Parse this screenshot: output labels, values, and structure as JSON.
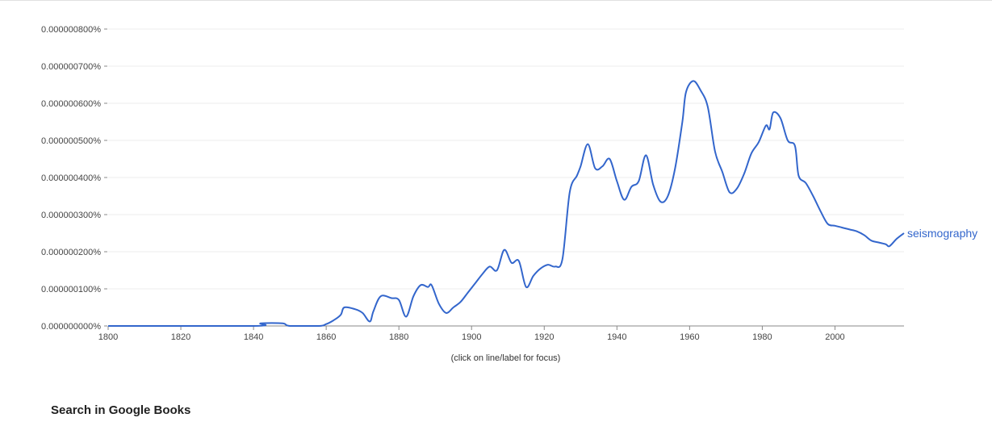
{
  "chart_data": {
    "type": "line",
    "xlim": [
      1800,
      2019
    ],
    "ylim": [
      0,
      8e-09
    ],
    "y_unit": "percent",
    "x_ticks": [
      "1800",
      "1820",
      "1840",
      "1860",
      "1880",
      "1900",
      "1920",
      "1940",
      "1960",
      "1980",
      "2000"
    ],
    "y_ticks": [
      "0.000000000%",
      "0.000000100%",
      "0.000000200%",
      "0.000000300%",
      "0.000000400%",
      "0.000000500%",
      "0.000000600%",
      "0.000000700%",
      "0.000000800%"
    ],
    "grid": true,
    "series": [
      {
        "name": "seismography",
        "color": "#3366cc",
        "x": [
          1800,
          1840,
          1842,
          1848,
          1850,
          1858,
          1860,
          1862,
          1864,
          1865,
          1868,
          1870,
          1872,
          1873,
          1875,
          1878,
          1880,
          1882,
          1884,
          1886,
          1888,
          1889,
          1891,
          1893,
          1895,
          1897,
          1899,
          1901,
          1903,
          1905,
          1907,
          1909,
          1911,
          1913,
          1915,
          1917,
          1919,
          1921,
          1923,
          1925,
          1927,
          1929,
          1930,
          1932,
          1934,
          1936,
          1938,
          1940,
          1942,
          1944,
          1946,
          1948,
          1950,
          1952,
          1954,
          1956,
          1958,
          1959,
          1961,
          1963,
          1965,
          1967,
          1969,
          1971,
          1973,
          1975,
          1977,
          1979,
          1981,
          1982,
          1983,
          1985,
          1987,
          1989,
          1990,
          1992,
          1994,
          1996,
          1998,
          2000,
          2002,
          2004,
          2006,
          2008,
          2010,
          2012,
          2014,
          2015,
          2017,
          2019
        ],
        "values": [
          0,
          0,
          7e-11,
          7e-11,
          0,
          0,
          5e-11,
          1.5e-10,
          3e-10,
          5e-10,
          4.5e-10,
          3.5e-10,
          1.2e-10,
          4e-10,
          8e-10,
          7.5e-10,
          7e-10,
          2.5e-10,
          8e-10,
          1.1e-09,
          1.05e-09,
          1.1e-09,
          6e-10,
          3.5e-10,
          5e-10,
          6.5e-10,
          9e-10,
          1.15e-09,
          1.4e-09,
          1.6e-09,
          1.5e-09,
          2.05e-09,
          1.7e-09,
          1.75e-09,
          1.05e-09,
          1.35e-09,
          1.55e-09,
          1.65e-09,
          1.6e-09,
          1.8e-09,
          3.6e-09,
          4.05e-09,
          4.3e-09,
          4.9e-09,
          4.25e-09,
          4.3e-09,
          4.5e-09,
          3.9e-09,
          3.4e-09,
          3.75e-09,
          3.9e-09,
          4.6e-09,
          3.8e-09,
          3.35e-09,
          3.5e-09,
          4.25e-09,
          5.5e-09,
          6.3e-09,
          6.6e-09,
          6.35e-09,
          5.9e-09,
          4.7e-09,
          4.15e-09,
          3.6e-09,
          3.7e-09,
          4.1e-09,
          4.65e-09,
          4.95e-09,
          5.4e-09,
          5.3e-09,
          5.75e-09,
          5.6e-09,
          5e-09,
          4.85e-09,
          4.05e-09,
          3.85e-09,
          3.5e-09,
          3.1e-09,
          2.75e-09,
          2.7e-09,
          2.65e-09,
          2.6e-09,
          2.55e-09,
          2.45e-09,
          2.3e-09,
          2.25e-09,
          2.2e-09,
          2.15e-09,
          2.35e-09,
          2.5e-09
        ]
      }
    ]
  },
  "focus_note": "(click on line/label for focus)",
  "search_heading": "Search in Google Books"
}
